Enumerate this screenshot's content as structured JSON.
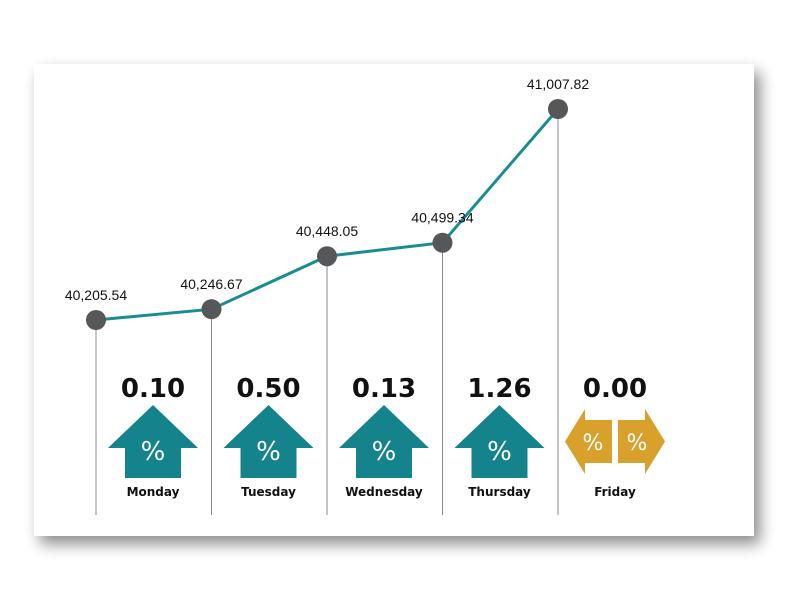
{
  "chart_data": {
    "type": "line",
    "categories": [
      "Monday",
      "Tuesday",
      "Wednesday",
      "Thursday",
      "Friday"
    ],
    "values": [
      40205.54,
      40246.67,
      40448.05,
      40499.34,
      41007.82
    ],
    "value_labels": [
      "40,205.54",
      "40,246.67",
      "40,448.05",
      "40,499.34",
      "41,007.82"
    ],
    "percent_changes": [
      "0.10",
      "0.50",
      "0.13",
      "1.26",
      "0.00"
    ],
    "directions": [
      "up",
      "up",
      "up",
      "up",
      "flat"
    ],
    "percent_symbol": "%",
    "line_color": "#1a8c93",
    "marker_color": "#555759",
    "up_arrow_color": "#14838c",
    "flat_arrow_color": "#d9a12b",
    "grid": false
  }
}
